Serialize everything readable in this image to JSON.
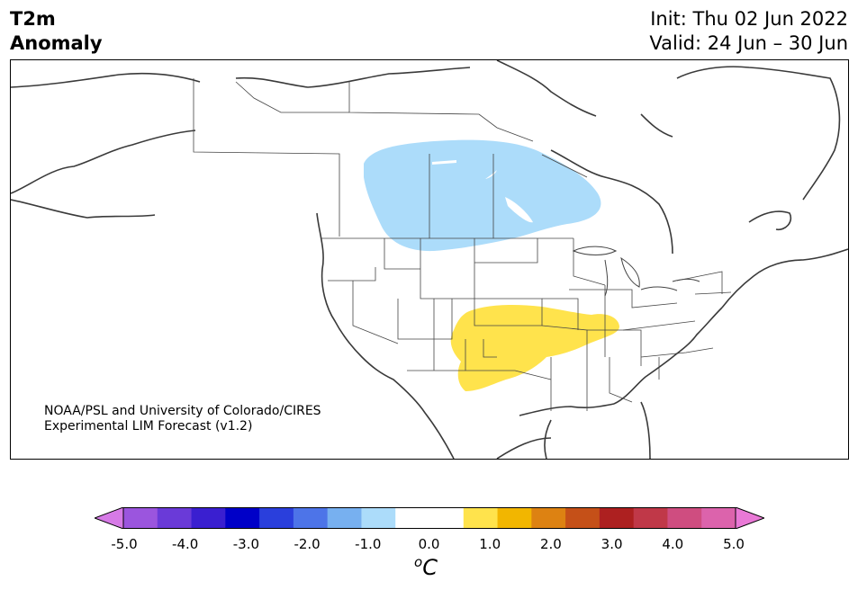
{
  "header": {
    "title_line1": "T2m",
    "title_line2": "Anomaly",
    "init": "Init: Thu 02 Jun 2022",
    "valid": "Valid: 24 Jun – 30 Jun"
  },
  "credit": {
    "line1": "NOAA/PSL and University of Colorado/CIRES",
    "line2": "Experimental LIM Forecast (v1.2)"
  },
  "colorbar": {
    "unit_base": "C",
    "unit_sup": "o",
    "colors": [
      "#d67ae6",
      "#9b55de",
      "#6a3ad8",
      "#3a1fd0",
      "#0000c8",
      "#2a3fdc",
      "#4d74e8",
      "#77b0f0",
      "#acdcfa",
      "#ffffff",
      "#ffffff",
      "#ffe34c",
      "#f2b600",
      "#dd8212",
      "#c55018",
      "#ad2020",
      "#c03848",
      "#cf4d80",
      "#dc63ac",
      "#e979d6"
    ],
    "tick_labels": [
      "-5.0",
      "-4.0",
      "-3.0",
      "-2.0",
      "-1.0",
      "0.0",
      "1.0",
      "2.0",
      "3.0",
      "4.0",
      "5.0"
    ]
  },
  "map": {
    "anomalies": [
      {
        "sign": "cool",
        "region": "central Canada",
        "color": "#acdcfa"
      },
      {
        "sign": "warm",
        "region": "southern Plains to mid-Mississippi Valley",
        "color": "#ffe34c"
      }
    ]
  }
}
